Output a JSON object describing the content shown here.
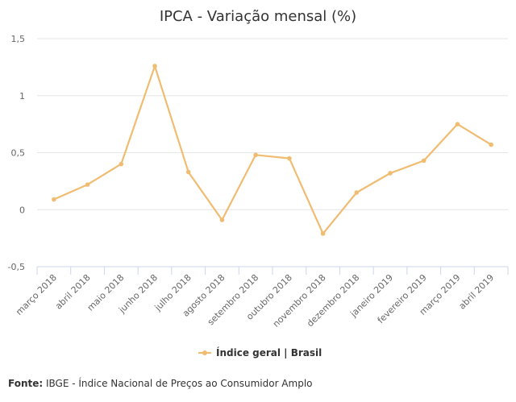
{
  "chart_data": {
    "type": "line",
    "title": "IPCA - Variação mensal (%)",
    "categories": [
      "março 2018",
      "abril 2018",
      "maio 2018",
      "junho 2018",
      "julho 2018",
      "agosto 2018",
      "setembro 2018",
      "outubro 2018",
      "novembro 2018",
      "dezembro 2018",
      "janeiro 2019",
      "fevereiro 2019",
      "março 2019",
      "abril 2019"
    ],
    "series": [
      {
        "name": "Índice geral | Brasil",
        "values": [
          0.09,
          0.22,
          0.4,
          1.26,
          0.33,
          -0.09,
          0.48,
          0.45,
          -0.21,
          0.15,
          0.32,
          0.43,
          0.75,
          0.57
        ],
        "color": "#f0bc72"
      }
    ],
    "yticks": [
      -0.5,
      0,
      0.5,
      1,
      1.5
    ],
    "yticklabels": [
      "-0,5",
      "0",
      "0,5",
      "1",
      "1,5"
    ],
    "ylim": [
      -0.5,
      1.5
    ],
    "grid": true,
    "legend_position": "bottom"
  },
  "source": {
    "label": "Fonte:",
    "text": " IBGE - Índice Nacional de Preços ao Consumidor Amplo"
  }
}
